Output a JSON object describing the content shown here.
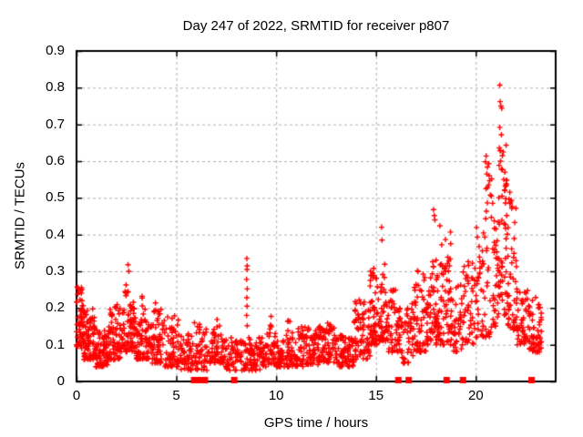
{
  "title": "Day 247 of 2022, SRMTID for receiver p807",
  "x_axis": {
    "label": "GPS time / hours",
    "min": 0,
    "max": 24,
    "ticks": [
      0,
      5,
      10,
      15,
      20
    ]
  },
  "y_axis": {
    "label": "SRMTID / TECUs",
    "min": 0,
    "max": 0.9,
    "ticks": [
      {
        "v": 0.0,
        "label": "0"
      },
      {
        "v": 0.1,
        "label": "0.1"
      },
      {
        "v": 0.2,
        "label": "0.2"
      },
      {
        "v": 0.3,
        "label": "0.3"
      },
      {
        "v": 0.4,
        "label": "0.4"
      },
      {
        "v": 0.5,
        "label": "0.5"
      },
      {
        "v": 0.6,
        "label": "0.6"
      },
      {
        "v": 0.7,
        "label": "0.7"
      },
      {
        "v": 0.8,
        "label": "0.8"
      },
      {
        "v": 0.9,
        "label": "0.9"
      }
    ]
  },
  "colors": {
    "marker": "#ff0000",
    "grid": "#b0b0b0",
    "axis": "#000000",
    "background": "#ffffff"
  },
  "chart_data": {
    "type": "scatter",
    "title": "Day 247 of 2022, SRMTID for receiver p807",
    "xlabel": "GPS time / hours",
    "ylabel": "SRMTID / TECUs",
    "xlim": [
      0,
      24
    ],
    "ylim": [
      0,
      0.9
    ],
    "xticks": [
      0,
      5,
      10,
      15,
      20
    ],
    "yticks": [
      0,
      0.1,
      0.2,
      0.3,
      0.4,
      0.5,
      0.6,
      0.7,
      0.8,
      0.9
    ],
    "grid": "dashed gray at every major tick",
    "legend": "none",
    "marker": "plus",
    "marker_color": "#ff0000",
    "series_description": "Dense red '+' scatter of SRMTID vs GPS time. Wavy noise band ~0.03-0.2 TECUs with bumps near 0.3 at 2.6 h, a narrow vertical streak to ~0.33 at 8.5 h, quiet midday 9-14 h (~0.05-0.15), activity rising after 14.5 h with peaks ~0.38 at 15.3 h, ~0.47 at 17.9 h, ~0.6 at 20.5 h, and a maximum ~0.81 at 21.2 h, declining to ~0.1-0.2 by 23.2 h. Isolated filled red squares sit on the y=0 axis.",
    "seed": 20220247,
    "density_bands": [
      {
        "t0": 0.0,
        "t1": 0.35,
        "n": 55,
        "ymin": 0.09,
        "ymax": 0.26,
        "skew": 1.3
      },
      {
        "t0": 0.35,
        "t1": 0.95,
        "n": 85,
        "ymin": 0.06,
        "ymax": 0.2,
        "skew": 1.5
      },
      {
        "t0": 0.95,
        "t1": 1.6,
        "n": 75,
        "ymin": 0.04,
        "ymax": 0.14,
        "skew": 1.4
      },
      {
        "t0": 1.6,
        "t1": 2.2,
        "n": 65,
        "ymin": 0.06,
        "ymax": 0.21,
        "skew": 1.5
      },
      {
        "t0": 2.2,
        "t1": 3.0,
        "n": 90,
        "ymin": 0.08,
        "ymax": 0.325,
        "skew": 1.5,
        "shape": "peak"
      },
      {
        "t0": 3.0,
        "t1": 3.7,
        "n": 75,
        "ymin": 0.06,
        "ymax": 0.26,
        "skew": 1.7,
        "shape": "peak"
      },
      {
        "t0": 3.7,
        "t1": 4.4,
        "n": 70,
        "ymin": 0.05,
        "ymax": 0.22,
        "skew": 1.7
      },
      {
        "t0": 4.4,
        "t1": 5.1,
        "n": 60,
        "ymin": 0.04,
        "ymax": 0.18,
        "skew": 1.6
      },
      {
        "t0": 5.1,
        "t1": 5.9,
        "n": 55,
        "ymin": 0.03,
        "ymax": 0.13,
        "skew": 1.4
      },
      {
        "t0": 5.9,
        "t1": 6.6,
        "n": 50,
        "ymin": 0.03,
        "ymax": 0.16,
        "skew": 1.5
      },
      {
        "t0": 6.6,
        "t1": 7.4,
        "n": 65,
        "ymin": 0.05,
        "ymax": 0.2,
        "skew": 1.7,
        "shape": "peak"
      },
      {
        "t0": 7.4,
        "t1": 8.4,
        "n": 65,
        "ymin": 0.03,
        "ymax": 0.12,
        "skew": 1.3
      },
      {
        "t0": 8.4,
        "t1": 9.3,
        "n": 70,
        "ymin": 0.03,
        "ymax": 0.12,
        "skew": 1.3
      },
      {
        "t0": 9.3,
        "t1": 10.2,
        "n": 75,
        "ymin": 0.04,
        "ymax": 0.18,
        "skew": 1.6,
        "shape": "peak"
      },
      {
        "t0": 10.2,
        "t1": 11.1,
        "n": 75,
        "ymin": 0.04,
        "ymax": 0.18,
        "skew": 1.5,
        "shape": "peak"
      },
      {
        "t0": 11.1,
        "t1": 12.1,
        "n": 85,
        "ymin": 0.04,
        "ymax": 0.15,
        "skew": 1.3
      },
      {
        "t0": 12.1,
        "t1": 13.1,
        "n": 85,
        "ymin": 0.05,
        "ymax": 0.16,
        "skew": 1.3
      },
      {
        "t0": 13.1,
        "t1": 13.9,
        "n": 70,
        "ymin": 0.04,
        "ymax": 0.13,
        "skew": 1.3
      },
      {
        "t0": 13.9,
        "t1": 14.7,
        "n": 70,
        "ymin": 0.06,
        "ymax": 0.23,
        "skew": 1.4
      },
      {
        "t0": 14.7,
        "t1": 15.15,
        "n": 55,
        "ymin": 0.1,
        "ymax": 0.31,
        "skew": 1.3
      },
      {
        "t0": 15.15,
        "t1": 15.6,
        "n": 50,
        "ymin": 0.11,
        "ymax": 0.38,
        "skew": 1.4,
        "shape": "peak"
      },
      {
        "t0": 15.6,
        "t1": 16.15,
        "n": 45,
        "ymin": 0.08,
        "ymax": 0.25,
        "skew": 1.5
      },
      {
        "t0": 16.15,
        "t1": 16.9,
        "n": 55,
        "ymin": 0.05,
        "ymax": 0.22,
        "skew": 1.5
      },
      {
        "t0": 16.9,
        "t1": 17.5,
        "n": 55,
        "ymin": 0.08,
        "ymax": 0.31,
        "skew": 1.4
      },
      {
        "t0": 17.5,
        "t1": 18.2,
        "n": 75,
        "ymin": 0.1,
        "ymax": 0.46,
        "skew": 1.3,
        "shape": "peak"
      },
      {
        "t0": 18.2,
        "t1": 18.75,
        "n": 55,
        "ymin": 0.1,
        "ymax": 0.44,
        "skew": 1.5
      },
      {
        "t0": 18.75,
        "t1": 19.35,
        "n": 45,
        "ymin": 0.08,
        "ymax": 0.27,
        "skew": 1.4
      },
      {
        "t0": 19.35,
        "t1": 19.95,
        "n": 45,
        "ymin": 0.1,
        "ymax": 0.33,
        "skew": 1.4
      },
      {
        "t0": 19.95,
        "t1": 20.45,
        "n": 40,
        "ymin": 0.12,
        "ymax": 0.42,
        "skew": 1.4
      },
      {
        "t0": 20.45,
        "t1": 20.85,
        "n": 32,
        "ymin": 0.12,
        "ymax": 0.6,
        "skew": 1.5
      },
      {
        "t0": 20.85,
        "t1": 21.15,
        "n": 35,
        "ymin": 0.15,
        "ymax": 0.46,
        "skew": 1.3
      },
      {
        "t0": 21.15,
        "t1": 21.55,
        "n": 50,
        "ymin": 0.18,
        "ymax": 0.66,
        "skew": 1.3
      },
      {
        "t0": 21.55,
        "t1": 22.05,
        "n": 50,
        "ymin": 0.14,
        "ymax": 0.52,
        "skew": 1.5
      },
      {
        "t0": 22.05,
        "t1": 22.65,
        "n": 50,
        "ymin": 0.1,
        "ymax": 0.27,
        "skew": 1.4
      },
      {
        "t0": 22.65,
        "t1": 23.3,
        "n": 55,
        "ymin": 0.08,
        "ymax": 0.23,
        "skew": 1.2
      }
    ],
    "feature_points": [
      [
        21.2,
        0.807
      ],
      [
        21.22,
        0.762
      ],
      [
        21.26,
        0.75
      ],
      [
        21.3,
        0.744
      ],
      [
        21.2,
        0.692
      ],
      [
        21.28,
        0.672
      ],
      [
        21.18,
        0.636
      ],
      [
        21.33,
        0.615
      ],
      [
        21.24,
        0.6
      ],
      [
        21.4,
        0.55
      ],
      [
        21.45,
        0.52
      ],
      [
        20.52,
        0.614
      ],
      [
        20.48,
        0.598
      ],
      [
        20.58,
        0.584
      ],
      [
        20.55,
        0.565
      ],
      [
        8.53,
        0.335
      ],
      [
        8.55,
        0.315
      ],
      [
        8.54,
        0.305
      ],
      [
        8.52,
        0.278
      ],
      [
        8.55,
        0.252
      ],
      [
        8.53,
        0.228
      ],
      [
        8.54,
        0.205
      ],
      [
        8.52,
        0.18
      ],
      [
        8.55,
        0.152
      ],
      [
        2.58,
        0.318
      ],
      [
        2.62,
        0.3
      ],
      [
        15.28,
        0.42
      ],
      [
        15.3,
        0.385
      ],
      [
        17.88,
        0.468
      ],
      [
        17.92,
        0.452
      ],
      [
        17.95,
        0.44
      ]
    ],
    "zero_flag_hours": [
      5.89,
      6.16,
      6.43,
      7.9,
      16.12,
      16.64,
      18.54,
      19.36,
      22.79
    ]
  }
}
